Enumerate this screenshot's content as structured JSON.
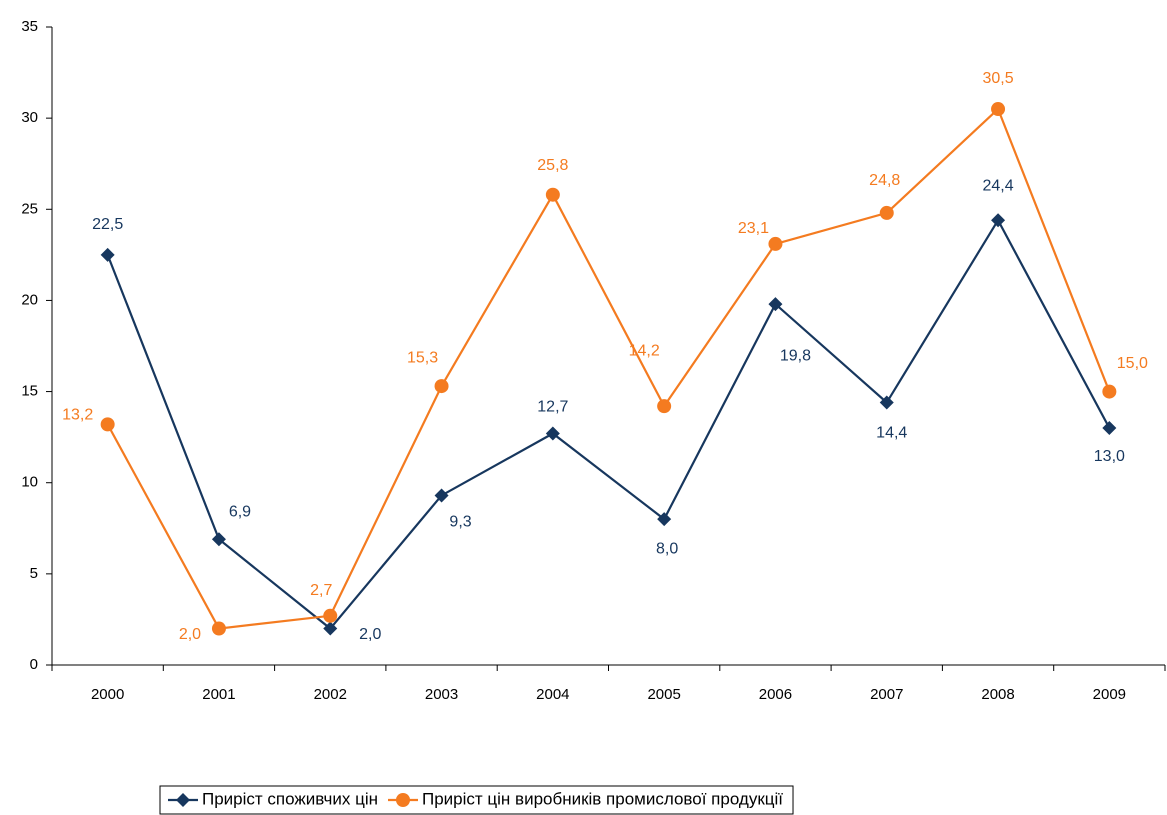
{
  "chart_data": {
    "type": "line",
    "categories": [
      "2000",
      "2001",
      "2002",
      "2003",
      "2004",
      "2005",
      "2006",
      "2007",
      "2008",
      "2009"
    ],
    "series": [
      {
        "name": "Приріст споживчих цін",
        "color": "#17375e",
        "marker": "diamond",
        "values": [
          22.5,
          6.9,
          2.0,
          9.3,
          12.7,
          8.0,
          19.8,
          14.4,
          24.4,
          13.0
        ],
        "value_labels": [
          "22,5",
          "6,9",
          "2,0",
          "9,3",
          "12,7",
          "8,0",
          "19,8",
          "14,4",
          "24,4",
          "13,0"
        ]
      },
      {
        "name": "Приріст цін виробників промислової продукції",
        "color": "#f47b20",
        "marker": "circle",
        "values": [
          13.2,
          2.0,
          2.7,
          15.3,
          25.8,
          14.2,
          23.1,
          24.8,
          30.5,
          15.0
        ],
        "value_labels": [
          "13,2",
          "2,0",
          "2,7",
          "15,3",
          "25,8",
          "14,2",
          "23,1",
          "24,8",
          "30,5",
          "15,0"
        ]
      }
    ],
    "ylim": [
      0,
      35
    ],
    "yticks": [
      0,
      5,
      10,
      15,
      20,
      25,
      30,
      35
    ],
    "grid": false,
    "legend": "bottom"
  }
}
